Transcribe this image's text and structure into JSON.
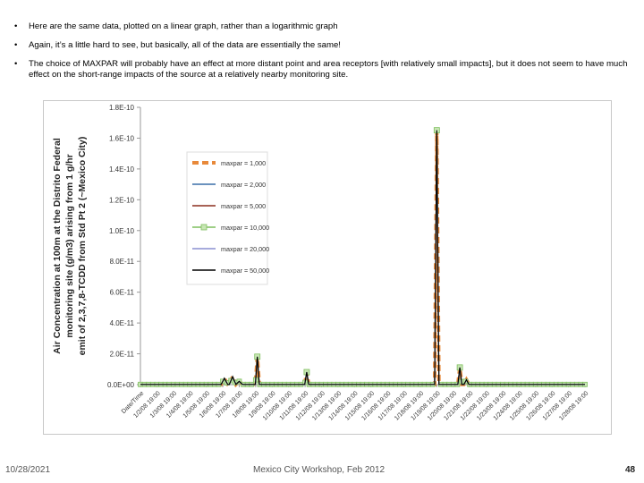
{
  "bullets": [
    "Here are the same data, plotted on a linear graph, rather than a logarithmic graph",
    "Again, it’s a little hard to see, but basically, all of the data are essentially the same!",
    "The choice of MAXPAR will probably have an effect at more distant point and area receptors [with relatively small impacts], but it does not seem to have much effect on the short-range impacts of the source at a relatively nearby monitoring site."
  ],
  "bullet_symbol": "•",
  "footer": {
    "date": "10/28/2021",
    "center": "Mexico City Workshop, Feb 2012",
    "page": "48"
  },
  "chart_data": {
    "type": "line",
    "title": "",
    "ylabel_lines": [
      "Air Concentration at 100m at the Distrito Federal",
      "monitoring site (g/m3) arising from 1 g/hr",
      "emit of 2,3,7,8-TCDD from Std Pt 2 (~Mexico City)"
    ],
    "ylim": [
      0,
      1.8e-10
    ],
    "yticks": [
      0,
      2e-11,
      4e-11,
      6e-11,
      8e-11,
      1e-10,
      1.2e-10,
      1.4e-10,
      1.6e-10,
      1.8e-10
    ],
    "ytick_labels": [
      "0.0E+00",
      "2.0E-11",
      "4.0E-11",
      "6.0E-11",
      "8.0E-11",
      "1.0E-10",
      "1.2E-10",
      "1.4E-10",
      "1.6E-10",
      "1.8E-10"
    ],
    "xtick_labels": [
      "Date/Time",
      "1/2/08 19:00",
      "1/3/08 19:00",
      "1/4/08 19:00",
      "1/5/08 19:00",
      "1/6/08 19:00",
      "1/7/08 19:00",
      "1/8/08 19:00",
      "1/9/08 19:00",
      "1/10/08 19:00",
      "1/11/08 19:00",
      "1/12/08 19:00",
      "1/13/08 19:00",
      "1/14/08 19:00",
      "1/15/08 19:00",
      "1/16/08 19:00",
      "1/17/08 19:00",
      "1/18/08 19:00",
      "1/19/08 19:00",
      "1/20/08 19:00",
      "1/21/08 19:00",
      "1/22/08 19:00",
      "1/23/08 19:00",
      "1/24/08 19:00",
      "1/25/08 19:00",
      "1/26/08 19:00",
      "1/27/08 19:00",
      "1/28/08 19:00"
    ],
    "grid": false,
    "legend_position": "upper-left-inside",
    "x_data_range": [
      0,
      27
    ],
    "peaks": [
      {
        "x": 4.8,
        "y": 0,
        "w": 0.25
      },
      {
        "x": 5.1,
        "y": 4e-12,
        "w": 0.2
      },
      {
        "x": 5.6,
        "y": 5e-12,
        "w": 0.2
      },
      {
        "x": 6.0,
        "y": 2e-12,
        "w": 0.2
      },
      {
        "x": 7.1,
        "y": 1.8e-11,
        "w": 0.12
      },
      {
        "x": 10.1,
        "y": 8e-12,
        "w": 0.12
      },
      {
        "x": 18.0,
        "y": 1.65e-10,
        "w": 0.13
      },
      {
        "x": 19.4,
        "y": 1.1e-11,
        "w": 0.12
      },
      {
        "x": 19.8,
        "y": 3e-12,
        "w": 0.15
      }
    ],
    "series": [
      {
        "name": "maxpar = 1,000",
        "color": "#e8893a",
        "style": "dashed-thick",
        "marker": "none",
        "scale": 1.0
      },
      {
        "name": "maxpar = 2,000",
        "color": "#3a6fa8",
        "style": "solid",
        "marker": "none",
        "scale": 0.99
      },
      {
        "name": "maxpar = 5,000",
        "color": "#8b2f1f",
        "style": "solid",
        "marker": "none",
        "scale": 0.985
      },
      {
        "name": "maxpar = 10,000",
        "color": "#7fbf5f",
        "style": "solid",
        "marker": "square",
        "scale": 1.0
      },
      {
        "name": "maxpar = 20,000",
        "color": "#8a8fd0",
        "style": "solid",
        "marker": "none",
        "scale": 0.98
      },
      {
        "name": "maxpar = 50,000",
        "color": "#000000",
        "style": "solid",
        "marker": "none",
        "scale": 1.0
      }
    ]
  }
}
